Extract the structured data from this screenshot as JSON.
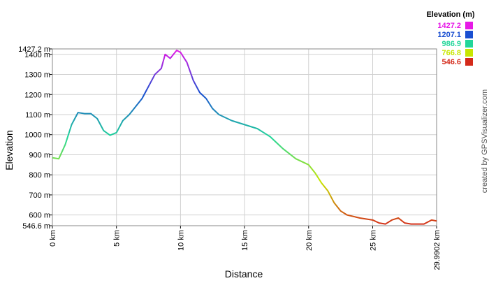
{
  "chart_data": {
    "type": "line",
    "xlabel": "Distance",
    "ylabel": "Elevation",
    "credit": "created by GPSVisualizer.com",
    "legend_title": "Elevation (m)",
    "legend_scale": [
      {
        "value": 1427.2,
        "color": "#e619e6"
      },
      {
        "value": 1207.1,
        "color": "#1a4fd1"
      },
      {
        "value": 986.9,
        "color": "#22d69a"
      },
      {
        "value": 766.8,
        "color": "#c8e600"
      },
      {
        "value": 546.6,
        "color": "#d42a1a"
      }
    ],
    "grid": true,
    "xlim": [
      0,
      29.9902
    ],
    "ylim": [
      546.6,
      1427.2
    ],
    "xticks": [
      {
        "value": 0,
        "label": "0 km"
      },
      {
        "value": 5,
        "label": "5 km"
      },
      {
        "value": 10,
        "label": "10 km"
      },
      {
        "value": 15,
        "label": "15 km"
      },
      {
        "value": 20,
        "label": "20 km"
      },
      {
        "value": 25,
        "label": "25 km"
      },
      {
        "value": 29.9902,
        "label": "29.9902 km"
      }
    ],
    "yticks": [
      {
        "value": 546.6,
        "label": "546.6 m"
      },
      {
        "value": 600,
        "label": "600 m"
      },
      {
        "value": 700,
        "label": "700 m"
      },
      {
        "value": 800,
        "label": "800 m"
      },
      {
        "value": 900,
        "label": "900 m"
      },
      {
        "value": 1000,
        "label": "1000 m"
      },
      {
        "value": 1100,
        "label": "1100 m"
      },
      {
        "value": 1200,
        "label": "1200 m"
      },
      {
        "value": 1300,
        "label": "1300 m"
      },
      {
        "value": 1400,
        "label": "1400 m"
      },
      {
        "value": 1427.2,
        "label": "1427.2 m"
      }
    ],
    "x": [
      0,
      0.5,
      1,
      1.5,
      2,
      2.5,
      3,
      3.5,
      4,
      4.5,
      5,
      5.5,
      6,
      6.5,
      7,
      7.5,
      8,
      8.5,
      8.8,
      9.2,
      9.7,
      10,
      10.5,
      11,
      11.5,
      12,
      12.5,
      13,
      14,
      15,
      16,
      17,
      18,
      19,
      20,
      20.5,
      21,
      21.5,
      22,
      22.5,
      23,
      24,
      25,
      25.5,
      26,
      26.5,
      27,
      27.5,
      28,
      29,
      29.6,
      29.9902
    ],
    "values": [
      885,
      880,
      950,
      1050,
      1110,
      1105,
      1105,
      1080,
      1020,
      997,
      1010,
      1070,
      1100,
      1140,
      1180,
      1240,
      1300,
      1330,
      1400,
      1380,
      1420,
      1410,
      1360,
      1270,
      1210,
      1180,
      1130,
      1100,
      1070,
      1050,
      1030,
      990,
      930,
      880,
      850,
      810,
      760,
      720,
      660,
      620,
      600,
      585,
      575,
      560,
      555,
      575,
      585,
      560,
      555,
      555,
      575,
      570
    ]
  }
}
